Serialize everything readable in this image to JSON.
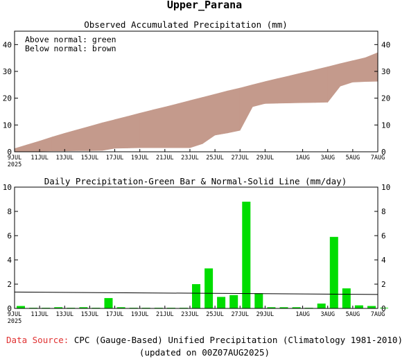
{
  "region_title": "Upper_Parana",
  "charts_meta": {
    "x_day_range": [
      0,
      29
    ],
    "x_ticks": [
      {
        "day": 0,
        "label": "9JUL",
        "year": "2025"
      },
      {
        "day": 2,
        "label": "11JUL"
      },
      {
        "day": 4,
        "label": "13JUL"
      },
      {
        "day": 6,
        "label": "15JUL"
      },
      {
        "day": 8,
        "label": "17JUL"
      },
      {
        "day": 10,
        "label": "19JUL"
      },
      {
        "day": 12,
        "label": "21JUL"
      },
      {
        "day": 14,
        "label": "23JUL"
      },
      {
        "day": 16,
        "label": "25JUL"
      },
      {
        "day": 18,
        "label": "27JUL"
      },
      {
        "day": 20,
        "label": "29JUL"
      },
      {
        "day": 23,
        "label": "1AUG"
      },
      {
        "day": 25,
        "label": "3AUG"
      },
      {
        "day": 27,
        "label": "5AUG"
      },
      {
        "day": 29,
        "label": "7AUG"
      }
    ]
  },
  "chart_data": [
    {
      "type": "area",
      "title": "Observed Accumulated Precipitation (mm)",
      "legend_lines": [
        "Above normal: green",
        "Below normal: brown"
      ],
      "ylim": [
        0,
        45
      ],
      "yticks": [
        0,
        10,
        20,
        30,
        40
      ],
      "colors": {
        "below_normal": "#c49a8c",
        "above_normal": "#00dd00",
        "axes": "#000000"
      },
      "series": [
        {
          "name": "Normal accumulated",
          "x": [
            0,
            1,
            2,
            3,
            4,
            5,
            6,
            7,
            8,
            9,
            10,
            11,
            12,
            13,
            14,
            15,
            16,
            17,
            18,
            19,
            20,
            21,
            22,
            23,
            24,
            25,
            26,
            27,
            28,
            29
          ],
          "values": [
            1.2,
            2.6,
            4.0,
            5.5,
            6.9,
            8.2,
            9.5,
            10.8,
            12.0,
            13.2,
            14.4,
            15.6,
            16.7,
            17.9,
            19.1,
            20.3,
            21.5,
            22.7,
            23.8,
            25.0,
            26.2,
            27.3,
            28.4,
            29.5,
            30.6,
            31.7,
            32.9,
            34.0,
            35.1,
            37.0
          ]
        },
        {
          "name": "Observed accumulated",
          "x": [
            0,
            1,
            2,
            3,
            4,
            5,
            6,
            7,
            8,
            9,
            10,
            11,
            12,
            13,
            14,
            15,
            16,
            17,
            18,
            19,
            20,
            21,
            22,
            23,
            24,
            25,
            26,
            27,
            28,
            29
          ],
          "values": [
            0.2,
            0.2,
            0.2,
            0.3,
            0.3,
            0.4,
            0.4,
            0.5,
            1.3,
            1.4,
            1.5,
            1.5,
            1.5,
            1.5,
            1.5,
            3.0,
            6.2,
            7.0,
            8.0,
            16.8,
            18.0,
            18.1,
            18.2,
            18.3,
            18.4,
            18.5,
            24.5,
            26.0,
            26.2,
            26.3
          ]
        }
      ]
    },
    {
      "type": "bar",
      "title": "Daily Precipitation-Green Bar & Normal-Solid Line (mm/day)",
      "ylim": [
        0,
        10
      ],
      "yticks": [
        0,
        2,
        4,
        6,
        8,
        10
      ],
      "colors": {
        "bar": "#00dd00",
        "normal_line": "#000000"
      },
      "series": [
        {
          "name": "Daily precipitation",
          "x": [
            0,
            1,
            2,
            3,
            4,
            5,
            6,
            7,
            8,
            9,
            10,
            11,
            12,
            13,
            14,
            15,
            16,
            17,
            18,
            19,
            20,
            21,
            22,
            23,
            24,
            25,
            26,
            27,
            28,
            29
          ],
          "values": [
            0.2,
            0.05,
            0.05,
            0.1,
            0.05,
            0.1,
            0.05,
            0.85,
            0.1,
            0.05,
            0.05,
            0.05,
            0.05,
            0.05,
            2.0,
            3.3,
            0.95,
            1.1,
            8.8,
            1.25,
            0.1,
            0.1,
            0.1,
            0.05,
            0.4,
            5.9,
            1.65,
            0.25,
            0.2,
            0.05
          ]
        },
        {
          "name": "Normal daily",
          "x": [
            0,
            29
          ],
          "values": [
            1.35,
            1.15
          ]
        }
      ]
    }
  ],
  "footer": {
    "source_label": "Data Source:",
    "source_text": "CPC (Gauge-Based) Unified Precipitation (Climatology 1981-2010)",
    "updated_text": "(updated on 00Z07AUG2025)"
  }
}
